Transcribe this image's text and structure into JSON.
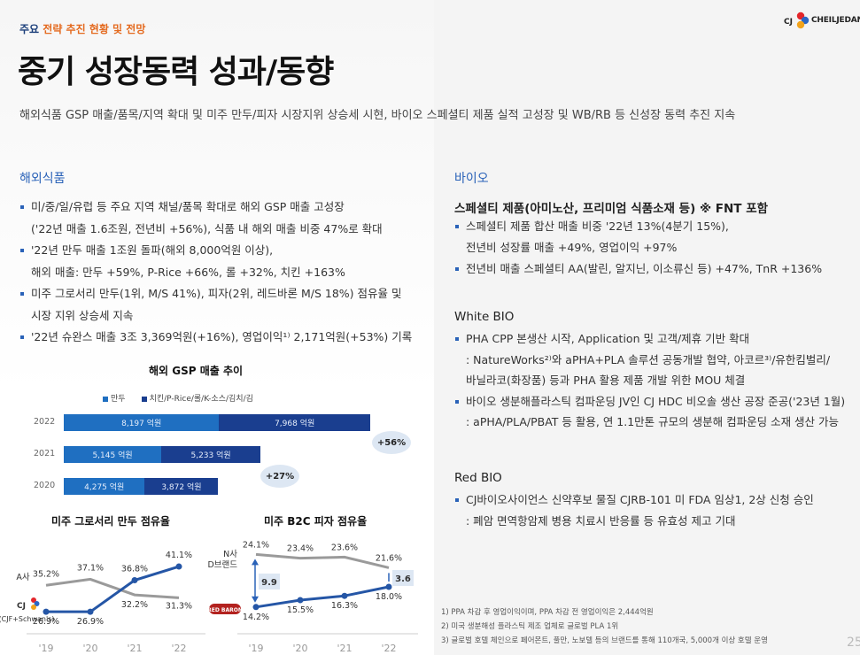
{
  "header": {
    "kicker_prefix": "주요",
    "kicker_highlight": "전략 추진 현황 및 전망",
    "title": "중기 성장동력 성과/동향",
    "subtitle": "해외식품 GSP 매출/품목/지역 확대 및 미주 만두/피자 시장지위 상승세 시현, 바이오 스페셜티 제품 실적 고성장 및 WB/RB 등 신성장 동력 추진 지속",
    "logo_mark": "CJ",
    "logo_text": "CHEILJEDANG"
  },
  "left": {
    "section_title": "해외식품",
    "bullets": [
      {
        "type": "dot",
        "text": "미/중/일/유럽 등 주요 지역 채널/품목 확대로 해외 GSP 매출 고성장"
      },
      {
        "type": "cont",
        "text": "('22년 매출 1.6조원, 전년비 +56%), 식품 내 해외 매출 비중 47%로 확대"
      },
      {
        "type": "dot",
        "text": "'22년 만두 매출 1조원 돌파(해외 8,000억원 이상),"
      },
      {
        "type": "cont",
        "text": "해외 매출: 만두 +59%, P-Rice +66%, 롤 +32%, 치킨 +163%"
      },
      {
        "type": "dot",
        "text": "미주 그로서리 만두(1위, M/S 41%), 피자(2위, 레드바론 M/S 18%) 점유율 및"
      },
      {
        "type": "cont",
        "text": "시장 지위 상승세 지속"
      },
      {
        "type": "dot",
        "text": "'22년 슈완스 매출 3조 3,369억원(+16%), 영업이익¹⁾ 2,171억원(+53%) 기록"
      }
    ]
  },
  "right": {
    "section_title": "바이오",
    "specialty_heading": "스페셜티 제품(아미노산, 프리미엄 식품소재 등) ※ FNT 포함",
    "specialty_bullets": [
      {
        "type": "dot",
        "text": "스페셜티 제품 합산 매출 비중 '22년 13%(4분기 15%),"
      },
      {
        "type": "cont",
        "text": "전년비 성장률 매출 +49%, 영업이익 +97%"
      },
      {
        "type": "dot",
        "text": "전년비 매출 스페셜티 AA(발린, 알지닌, 이소류신 등) +47%, TnR +136%"
      }
    ],
    "white_heading": "White BIO",
    "white_bullets": [
      {
        "type": "dot",
        "text": "PHA CPP 본생산 시작, Application 및 고객/제휴 기반 확대"
      },
      {
        "type": "cont",
        "text": ": NatureWorks²⁾와 aPHA+PLA 솔루션 공동개발 협약, 아코르³⁾/유한킴벌리/"
      },
      {
        "type": "cont",
        "text": "바닐라코(화장품) 등과 PHA 활용 제품 개발 위한 MOU 체결"
      },
      {
        "type": "dot",
        "text": "바이오 생분해플라스틱 컴파운딩 JV인 CJ HDC 비오솔 생산 공장 준공('23년 1월)"
      },
      {
        "type": "cont",
        "text": ": aPHA/PLA/PBAT 등 활용, 연 1.1만톤 규모의 생분해 컴파운딩 소재 생산 가능"
      }
    ],
    "red_heading": "Red BIO",
    "red_bullets": [
      {
        "type": "dot",
        "text": "CJ바이오사이언스 신약후보 물질 CJRB-101 미 FDA 임상1, 2상 신청 승인"
      },
      {
        "type": "cont",
        "text": ": 폐암 면역항암제 병용 치료시 반응률 등 유효성 제고 기대"
      }
    ]
  },
  "footnotes": [
    "1) PPA 차감 후 영업이익이며, PPA 차감 전 영업이익은 2,444억원",
    "2) 미국 생분해성 플라스틱 제조 업체로 글로벌 PLA 1위",
    "3) 글로벌 호텔 체인으로 페어몬트, 풀만, 노보텔 등의 브랜드를 통해 110개국, 5,000개 이상 호텔 운영"
  ],
  "page_number": "25",
  "colors": {
    "dumpling": "#1f6fc1",
    "other": "#1a3e8f",
    "badge": "#dde7f3",
    "cj_line": "#2556a6",
    "competitor_line": "#9a9a9a"
  },
  "chart_data": [
    {
      "type": "bar",
      "orientation": "horizontal-stacked",
      "title": "해외 GSP  매출 추이",
      "categories": [
        "2022",
        "2021",
        "2020"
      ],
      "series": [
        {
          "name": "만두",
          "values": [
            8197,
            5145,
            4275
          ],
          "labels": [
            "8,197 억원",
            "5,145 억원",
            "4,275 억원"
          ]
        },
        {
          "name": "치킨/P-Rice/롤/K-소스/김치/김",
          "values": [
            7968,
            5233,
            3872
          ],
          "labels": [
            "7,968 억원",
            "5,233 억원",
            "3,872 억원"
          ]
        }
      ],
      "growth_badges": [
        "+56%",
        "+27%"
      ]
    },
    {
      "type": "line",
      "title": "미주 그로서리 만두 점유율",
      "x": [
        "'19",
        "'20",
        "'21",
        "'22"
      ],
      "series": [
        {
          "name": "A사",
          "values": [
            35.2,
            37.1,
            32.2,
            31.3
          ],
          "labels": [
            "35.2%",
            "37.1%",
            "32.2%",
            "31.3%"
          ]
        },
        {
          "name": "(CJF+Schwan's)",
          "values": [
            26.9,
            26.9,
            36.8,
            41.1
          ],
          "labels": [
            "26.9%",
            "26.9%",
            "36.8%",
            "41.1%"
          ]
        }
      ]
    },
    {
      "type": "line",
      "title": "미주 B2C 피자 점유율",
      "x": [
        "'19",
        "'20",
        "'21",
        "'22"
      ],
      "series": [
        {
          "name": "N사 D브랜드",
          "values": [
            24.1,
            23.4,
            23.6,
            21.6
          ],
          "labels": [
            "24.1%",
            "23.4%",
            "23.6%",
            "21.6%"
          ]
        },
        {
          "name": "RED BARON",
          "values": [
            14.2,
            15.5,
            16.3,
            18.0
          ],
          "labels": [
            "14.2%",
            "15.5%",
            "16.3%",
            "18.0%"
          ]
        }
      ],
      "gap_annotations": [
        "9.9",
        "3.6"
      ]
    }
  ]
}
